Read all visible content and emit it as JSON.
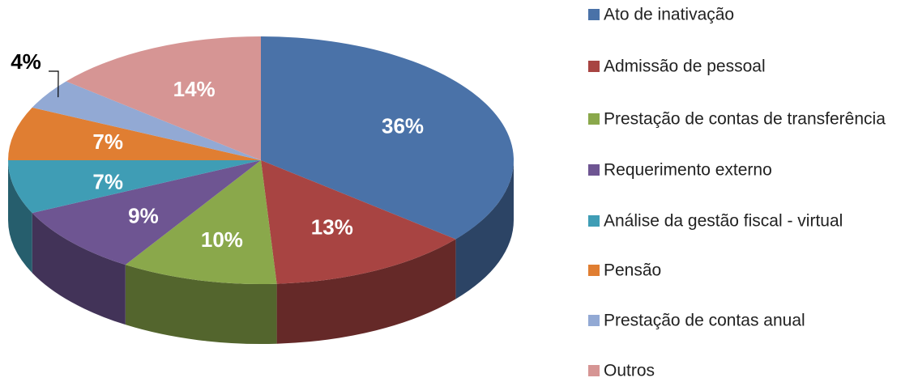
{
  "chart_data": {
    "type": "pie",
    "categories": [
      "Ato de inativação",
      "Admissão de pessoal",
      "Prestação de contas de transferência",
      "Requerimento externo",
      "Análise da gestão fiscal - virtual",
      "Pensão",
      "Prestação de contas anual",
      "Outros"
    ],
    "values": [
      36,
      13,
      10,
      9,
      7,
      7,
      4,
      14
    ],
    "value_labels": [
      "36%",
      "13%",
      "10%",
      "9%",
      "7%",
      "7%",
      "4%",
      "14%"
    ],
    "colors": [
      "#4a72a8",
      "#a84442",
      "#8aa84b",
      "#6e5592",
      "#3f9db5",
      "#e07e32",
      "#92a9d4",
      "#d69594"
    ],
    "legend": "right"
  }
}
